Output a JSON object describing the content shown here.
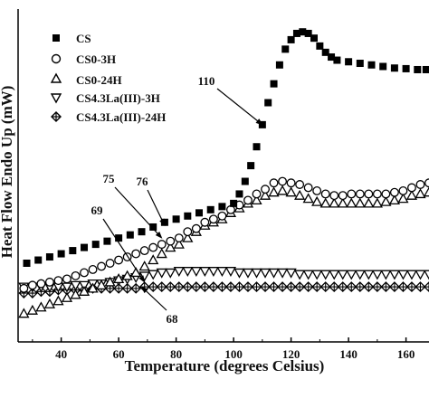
{
  "chart_data": {
    "type": "scatter",
    "title": "",
    "xlabel": "Temperature (degrees Celsius)",
    "ylabel": "Heat Flow Endo Up (mW)",
    "xlim": [
      25,
      168
    ],
    "ylim": [
      0,
      100
    ],
    "xticks": [
      40,
      60,
      80,
      100,
      120,
      140,
      160
    ],
    "yticks_shown": false,
    "grid": false,
    "legend_position": "top-left",
    "series": [
      {
        "name": "CS",
        "marker": "filled-square",
        "color": "#000000",
        "x": [
          28,
          32,
          36,
          40,
          44,
          48,
          52,
          56,
          60,
          64,
          68,
          72,
          76,
          80,
          84,
          88,
          92,
          96,
          100,
          102,
          104,
          106,
          108,
          110,
          112,
          114,
          116,
          118,
          120,
          122,
          124,
          126,
          128,
          130,
          132,
          134,
          136,
          140,
          144,
          148,
          152,
          156,
          160,
          164,
          167
        ],
        "y": [
          25,
          26,
          27,
          28,
          29,
          30,
          31,
          32,
          33,
          34,
          35,
          36.5,
          38,
          39,
          40,
          41,
          42,
          43,
          44,
          47,
          51,
          56,
          62,
          69,
          76,
          82,
          88,
          93,
          96,
          98,
          98.5,
          98,
          96.5,
          94,
          92,
          90.5,
          89.5,
          89,
          88.5,
          88,
          87.5,
          87,
          86.8,
          86.5,
          86.5
        ]
      },
      {
        "name": "CS0-3H",
        "marker": "open-circle",
        "color": "#000000",
        "x": [
          27,
          30,
          33,
          36,
          39,
          42,
          45,
          48,
          51,
          54,
          57,
          60,
          63,
          66,
          69,
          72,
          75,
          78,
          81,
          84,
          87,
          90,
          93,
          96,
          99,
          102,
          105,
          108,
          111,
          114,
          117,
          120,
          123,
          126,
          129,
          132,
          135,
          138,
          141,
          144,
          147,
          150,
          153,
          156,
          159,
          162,
          165,
          168
        ],
        "y": [
          17,
          18,
          18.5,
          19,
          19.5,
          20,
          21,
          22,
          23,
          24,
          25,
          26,
          27,
          28,
          29,
          30,
          31,
          32,
          33,
          35,
          36,
          38,
          39,
          40,
          42,
          43.5,
          45,
          47,
          48.5,
          50.5,
          51,
          50.5,
          50,
          49,
          48,
          47,
          46.5,
          46.5,
          47,
          47,
          47,
          47,
          47,
          47.5,
          48,
          49,
          50,
          50.5
        ]
      },
      {
        "name": "CS0-24H",
        "marker": "open-triangle-up",
        "color": "#000000",
        "x": [
          27,
          30,
          33,
          36,
          39,
          42,
          45,
          48,
          51,
          54,
          57,
          60,
          63,
          66,
          69,
          72,
          75,
          78,
          81,
          84,
          87,
          90,
          93,
          96,
          99,
          102,
          105,
          108,
          111,
          114,
          117,
          120,
          123,
          126,
          129,
          132,
          135,
          138,
          141,
          144,
          147,
          150,
          153,
          156,
          159,
          162,
          165,
          168
        ],
        "y": [
          9,
          10,
          11,
          12,
          13,
          14,
          15,
          16,
          17,
          18,
          19,
          20,
          21,
          22,
          24,
          26,
          28,
          30,
          31,
          33,
          35,
          37,
          38,
          39,
          41,
          42.5,
          44,
          45,
          46.5,
          47.5,
          48,
          47.5,
          46.5,
          45.5,
          44.5,
          44,
          44,
          44,
          44,
          44,
          44,
          44,
          44.5,
          45,
          45.5,
          46.5,
          47,
          47.5
        ]
      },
      {
        "name": "CS4.3La(III)-3H",
        "marker": "open-triangle-down",
        "color": "#000000",
        "x": [
          27,
          30,
          33,
          36,
          39,
          42,
          45,
          48,
          51,
          54,
          57,
          60,
          63,
          66,
          69,
          72,
          75,
          78,
          81,
          84,
          87,
          90,
          93,
          96,
          99,
          102,
          105,
          108,
          111,
          114,
          117,
          120,
          123,
          126,
          129,
          132,
          135,
          138,
          141,
          144,
          147,
          150,
          153,
          156,
          159,
          162,
          165,
          168
        ],
        "y": [
          17.5,
          17.5,
          17.5,
          17.5,
          17.5,
          17.5,
          18,
          18,
          18.5,
          18.5,
          19,
          19.5,
          20,
          20.5,
          21,
          21.5,
          22,
          22,
          22.5,
          22.5,
          22.5,
          22.5,
          22.5,
          22.5,
          22.5,
          22,
          22,
          22,
          22,
          22,
          22,
          22,
          21.5,
          21.5,
          21.5,
          21.5,
          21.5,
          21.5,
          21.5,
          21.5,
          21.5,
          21.5,
          21.5,
          21.5,
          21.5,
          21.5,
          21.5,
          21.5
        ]
      },
      {
        "name": "CS4.3La(III)-24H",
        "marker": "crossed-diamond",
        "color": "#000000",
        "x": [
          27,
          30,
          33,
          36,
          39,
          42,
          45,
          48,
          51,
          54,
          57,
          60,
          63,
          66,
          69,
          72,
          75,
          78,
          81,
          84,
          87,
          90,
          93,
          96,
          99,
          102,
          105,
          108,
          111,
          114,
          117,
          120,
          123,
          126,
          129,
          132,
          135,
          138,
          141,
          144,
          147,
          150,
          153,
          156,
          159,
          162,
          165,
          168
        ],
        "y": [
          15.5,
          15.5,
          16,
          16,
          16.5,
          16.5,
          16.5,
          16.5,
          17,
          17,
          17,
          17,
          17,
          17,
          17.5,
          17.5,
          17.5,
          17.5,
          17.5,
          17.5,
          17.5,
          17.5,
          17.5,
          17.5,
          17.5,
          17.5,
          17.5,
          17.5,
          17.5,
          17.5,
          17.5,
          17.5,
          17.5,
          17.5,
          17.5,
          17.5,
          17.5,
          17.5,
          17.5,
          17.5,
          17.5,
          17.5,
          17.5,
          17.5,
          17.5,
          17.5,
          17.5,
          17.5
        ]
      }
    ],
    "annotations": [
      {
        "text": "110",
        "point_x": 110,
        "point_y": 69
      },
      {
        "text": "75",
        "point_x": 75,
        "point_y": 33
      },
      {
        "text": "76",
        "point_x": 76,
        "point_y": 37
      },
      {
        "text": "69",
        "point_x": 69,
        "point_y": 19
      },
      {
        "text": "68",
        "point_x": 68,
        "point_y": 17.5
      }
    ]
  }
}
